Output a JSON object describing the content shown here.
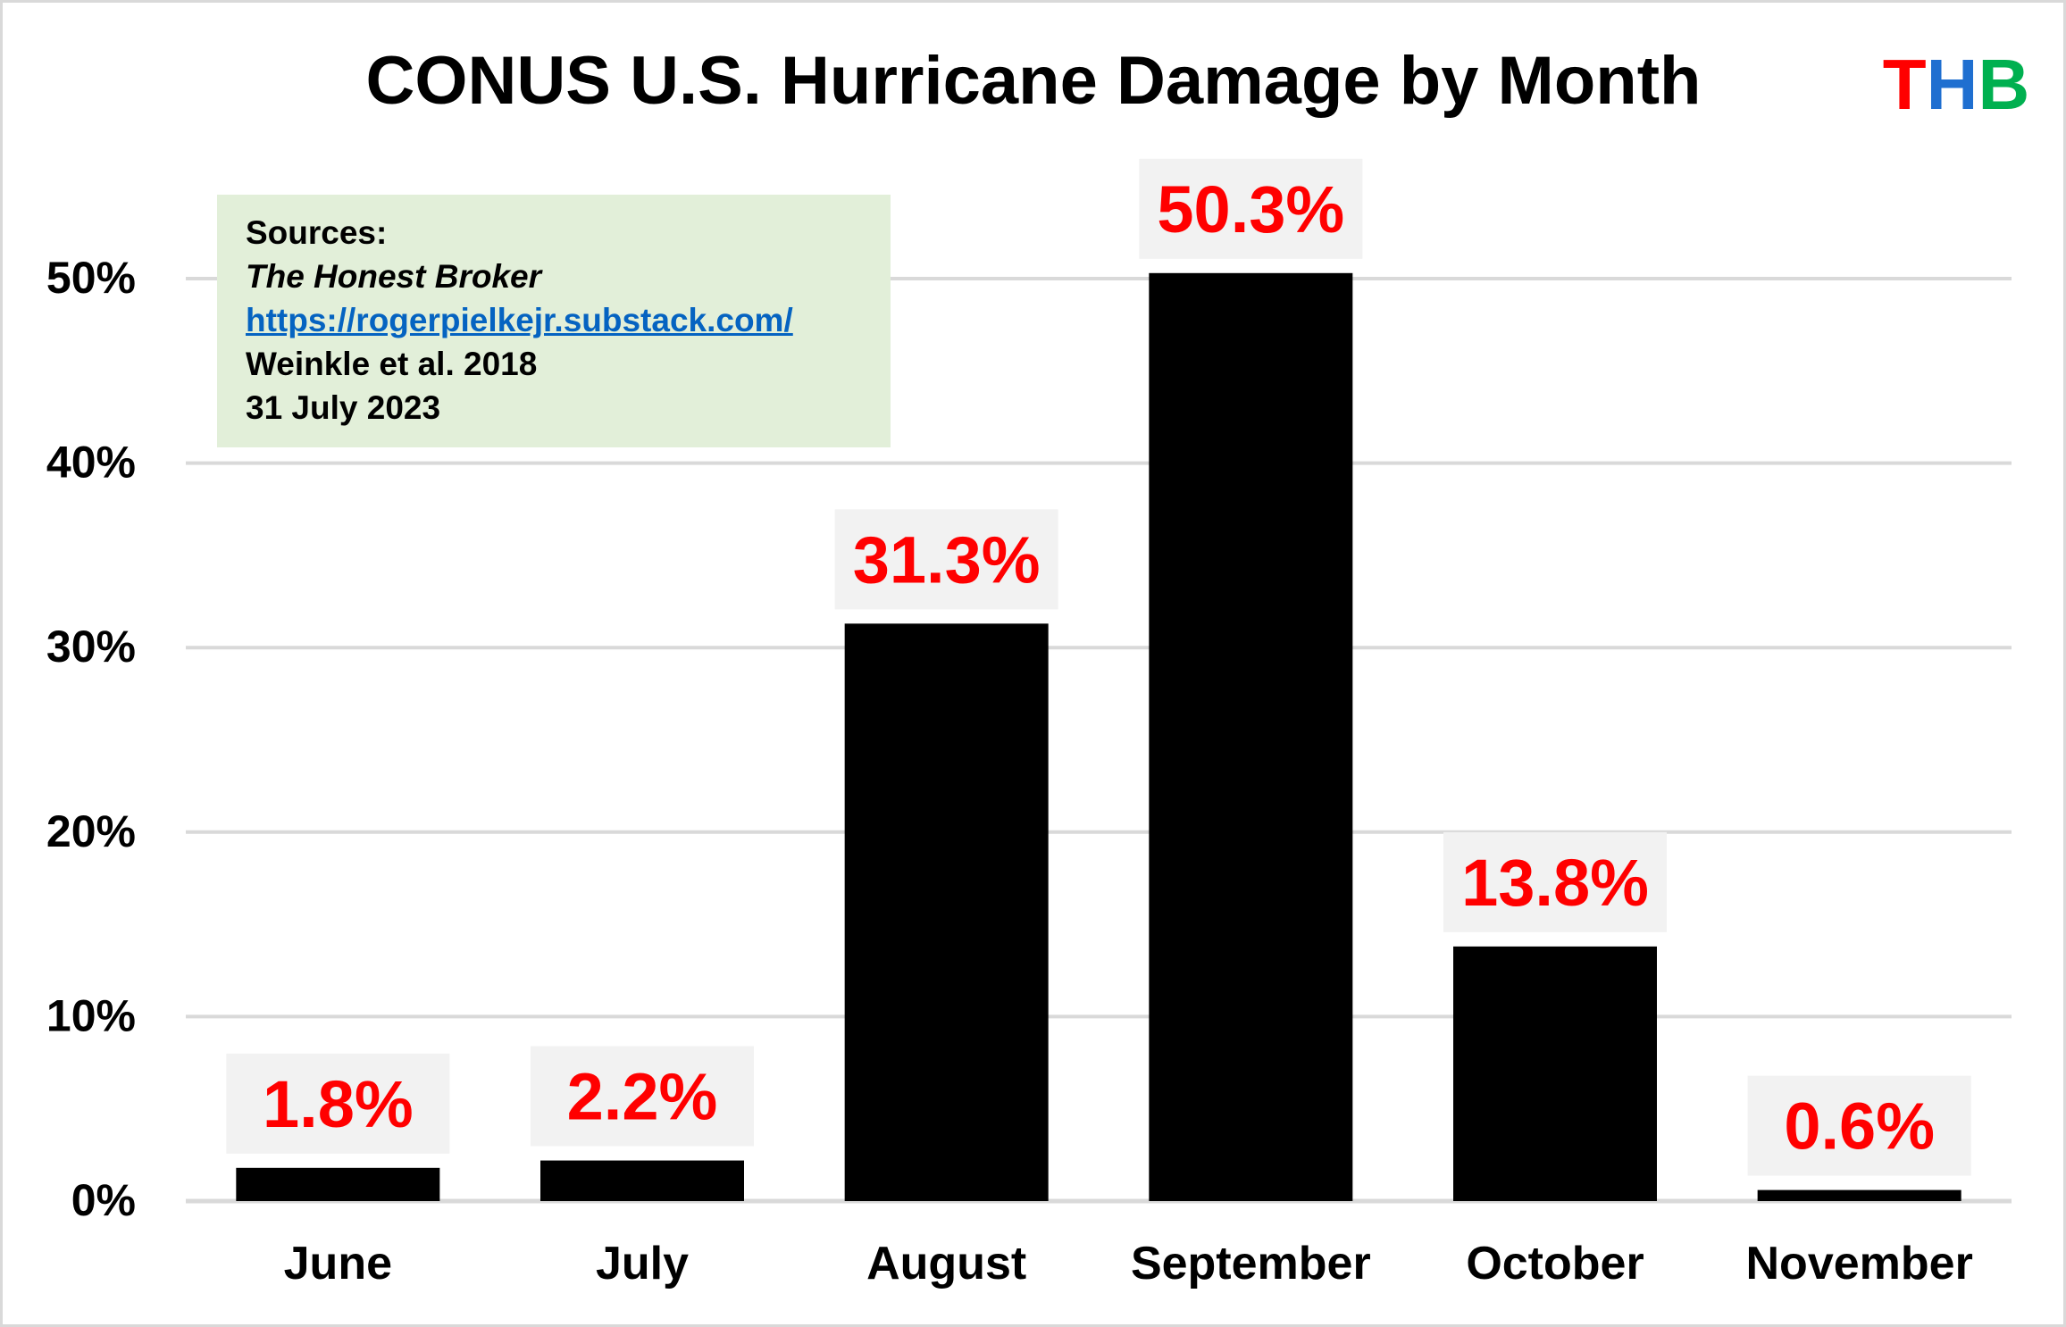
{
  "chart_data": {
    "type": "bar",
    "title": "CONUS U.S. Hurricane Damage by Month",
    "categories": [
      "June",
      "July",
      "August",
      "September",
      "October",
      "November"
    ],
    "values": [
      1.8,
      2.2,
      31.3,
      50.3,
      13.8,
      0.6
    ],
    "value_labels": [
      "1.8%",
      "2.2%",
      "31.3%",
      "50.3%",
      "13.8%",
      "0.6%"
    ],
    "ylim": [
      0,
      50
    ],
    "yticks": [
      0,
      10,
      20,
      30,
      40,
      50
    ],
    "ytick_labels": [
      "0%",
      "10%",
      "20%",
      "30%",
      "40%",
      "50%"
    ],
    "xlabel": "",
    "ylabel": "",
    "grid": true,
    "legend": "none",
    "bar_color": "#000000",
    "label_color": "#ff0000",
    "label_bg": "#f2f2f2"
  },
  "logo": {
    "letters": [
      {
        "char": "T",
        "color": "#ff0000"
      },
      {
        "char": "H",
        "color": "#1f6fd0"
      },
      {
        "char": "B",
        "color": "#00b050"
      }
    ]
  },
  "sources_box": {
    "heading": "Sources:",
    "publication": "The Honest Broker",
    "url": "https://rogerpielkejr.substack.com/",
    "reference": "Weinkle et al. 2018",
    "date": "31 July 2023"
  }
}
